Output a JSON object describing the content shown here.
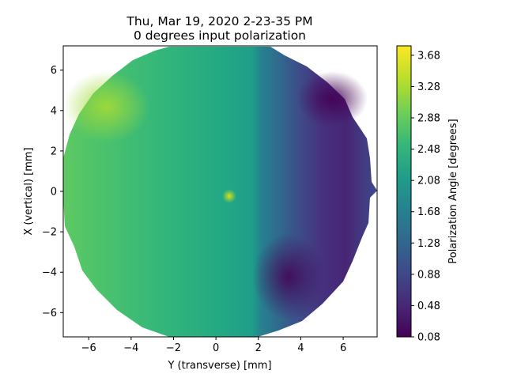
{
  "chart_data": {
    "type": "heatmap",
    "title_line1": "Thu, Mar 19, 2020 2-23-35 PM",
    "title_line2": "0 degrees input polarization",
    "xlabel": "Y (transverse) [mm]",
    "ylabel": "X (vertical) [mm]",
    "colorbar_label": "Polarization Angle [degrees]",
    "xlim": [
      -7.2,
      7.6
    ],
    "ylim": [
      -7.2,
      7.2
    ],
    "x_ticks": [
      -6,
      -4,
      -2,
      0,
      2,
      4,
      6
    ],
    "y_ticks": [
      -6,
      -4,
      -2,
      0,
      2,
      4,
      6
    ],
    "colorbar_range": [
      0.08,
      3.8
    ],
    "colorbar_ticks": [
      "0.08",
      "0.48",
      "0.88",
      "1.28",
      "1.68",
      "2.08",
      "2.48",
      "2.88",
      "3.28",
      "3.68"
    ],
    "colormap": "viridis",
    "aperture_radius_mm": 7.3,
    "approx_field": {
      "left_edge_value": 2.8,
      "center_value": 2.1,
      "right_edge_value": 0.3,
      "bright_spot": {
        "y_mm": 0.6,
        "x_mm": -0.3,
        "value": 3.3
      },
      "bright_region": {
        "y_mm": -5.4,
        "x_mm": 4.0,
        "value": 3.4
      }
    }
  }
}
